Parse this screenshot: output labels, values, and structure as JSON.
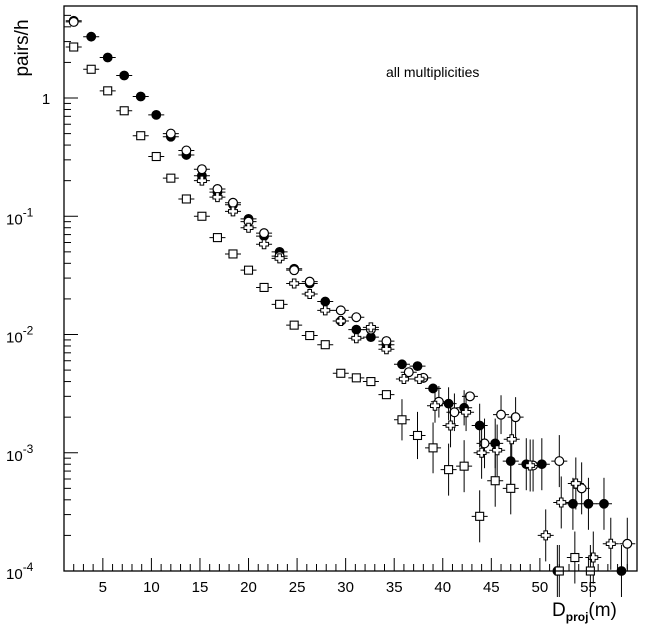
{
  "chart_data": {
    "type": "scatter",
    "ylabel": "pairs/h",
    "xlabel_main": "D",
    "xlabel_sub": "proj",
    "xlabel_unit": "(m)",
    "annotation": "all multiplicities",
    "xlim": [
      1,
      60
    ],
    "ylim": [
      0.0001,
      6
    ],
    "yscale": "log",
    "grid": false,
    "legend": "none",
    "x_tick_labels": [
      "5",
      "10",
      "15",
      "20",
      "25",
      "30",
      "35",
      "40",
      "45",
      "50",
      "55"
    ],
    "y_tick_labels": [
      {
        "value": 1,
        "label": "1"
      },
      {
        "value": 0.1,
        "label": "10",
        "exp": "-1"
      },
      {
        "value": 0.01,
        "label": "10",
        "exp": "-2"
      },
      {
        "value": 0.001,
        "label": "10",
        "exp": "-3"
      },
      {
        "value": 0.0001,
        "label": "10",
        "exp": "-4"
      }
    ],
    "series": [
      {
        "marker": "circle-filled",
        "points": [
          [
            2.0,
            4.5
          ],
          [
            3.8,
            3.3
          ],
          [
            5.5,
            2.2
          ],
          [
            7.2,
            1.55
          ],
          [
            8.9,
            1.03
          ],
          [
            10.5,
            0.72
          ],
          [
            12.0,
            0.47
          ],
          [
            13.6,
            0.33
          ],
          [
            15.2,
            0.22
          ],
          [
            16.8,
            0.16
          ],
          [
            18.4,
            0.125
          ],
          [
            20.0,
            0.095
          ],
          [
            21.6,
            0.068
          ],
          [
            23.2,
            0.05
          ],
          [
            24.7,
            0.036
          ],
          [
            26.3,
            0.027
          ],
          [
            27.9,
            0.019
          ],
          [
            29.5,
            0.013
          ],
          [
            31.1,
            0.011
          ],
          [
            32.6,
            0.0095
          ],
          [
            34.2,
            0.0082
          ],
          [
            35.8,
            0.0056
          ],
          [
            37.4,
            0.0054
          ],
          [
            39.0,
            0.0035
          ],
          [
            40.6,
            0.0026
          ],
          [
            42.2,
            0.0024
          ],
          [
            43.8,
            0.0017
          ],
          [
            45.4,
            0.0012
          ],
          [
            47.0,
            0.00085
          ],
          [
            48.6,
            0.0008
          ],
          [
            50.2,
            0.0008
          ],
          [
            51.8,
            0.0001
          ],
          [
            53.4,
            0.00037
          ],
          [
            55.0,
            0.00037
          ],
          [
            56.6,
            0.00037
          ],
          [
            58.4,
            0.0001
          ]
        ]
      },
      {
        "marker": "circle-open",
        "points": [
          [
            2.0,
            4.4
          ],
          [
            12.0,
            0.5
          ],
          [
            13.6,
            0.36
          ],
          [
            15.2,
            0.25
          ],
          [
            16.8,
            0.17
          ],
          [
            18.4,
            0.13
          ],
          [
            20.0,
            0.09
          ],
          [
            21.6,
            0.072
          ],
          [
            23.2,
            0.046
          ],
          [
            24.7,
            0.035
          ],
          [
            26.3,
            0.028
          ],
          [
            29.5,
            0.016
          ],
          [
            31.1,
            0.014
          ],
          [
            32.6,
            0.011
          ],
          [
            34.2,
            0.0088
          ],
          [
            36.5,
            0.0048
          ],
          [
            38.0,
            0.0043
          ],
          [
            39.6,
            0.0027
          ],
          [
            41.2,
            0.0022
          ],
          [
            42.8,
            0.003
          ],
          [
            44.3,
            0.0012
          ],
          [
            46.0,
            0.0021
          ],
          [
            47.5,
            0.002
          ],
          [
            49.3,
            0.00078
          ],
          [
            52.0,
            0.00085
          ],
          [
            54.3,
            0.0005
          ],
          [
            59.0,
            0.00017
          ]
        ]
      },
      {
        "marker": "cross-open",
        "points": [
          [
            15.2,
            0.2
          ],
          [
            16.8,
            0.145
          ],
          [
            18.4,
            0.11
          ],
          [
            20.0,
            0.08
          ],
          [
            21.6,
            0.058
          ],
          [
            23.2,
            0.044
          ],
          [
            24.7,
            0.027
          ],
          [
            26.3,
            0.022
          ],
          [
            27.9,
            0.016
          ],
          [
            29.5,
            0.013
          ],
          [
            31.1,
            0.0093
          ],
          [
            32.6,
            0.0115
          ],
          [
            34.2,
            0.0075
          ],
          [
            36.0,
            0.0042
          ],
          [
            37.6,
            0.0042
          ],
          [
            39.2,
            0.0025
          ],
          [
            40.8,
            0.0017
          ],
          [
            42.4,
            0.0022
          ],
          [
            44.0,
            0.001
          ],
          [
            45.6,
            0.00105
          ],
          [
            47.1,
            0.0013
          ],
          [
            49.0,
            0.00078
          ],
          [
            50.6,
            0.0002
          ],
          [
            52.2,
            0.00038
          ],
          [
            53.7,
            0.00055
          ],
          [
            55.5,
            0.00013
          ],
          [
            57.3,
            0.00017
          ]
        ]
      },
      {
        "marker": "square-open",
        "points": [
          [
            2.0,
            2.7
          ],
          [
            3.8,
            1.75
          ],
          [
            5.5,
            1.15
          ],
          [
            7.2,
            0.78
          ],
          [
            8.9,
            0.48
          ],
          [
            10.5,
            0.32
          ],
          [
            12.0,
            0.21
          ],
          [
            13.6,
            0.14
          ],
          [
            15.2,
            0.1
          ],
          [
            16.8,
            0.066
          ],
          [
            18.4,
            0.048
          ],
          [
            20.0,
            0.035
          ],
          [
            21.6,
            0.025
          ],
          [
            23.2,
            0.018
          ],
          [
            24.7,
            0.012
          ],
          [
            26.3,
            0.0098
          ],
          [
            27.9,
            0.0082
          ],
          [
            29.5,
            0.0047
          ],
          [
            31.1,
            0.0043
          ],
          [
            32.6,
            0.004
          ],
          [
            34.2,
            0.0031
          ],
          [
            35.8,
            0.0019
          ],
          [
            37.4,
            0.0014
          ],
          [
            39.0,
            0.0011
          ],
          [
            40.6,
            0.00072
          ],
          [
            42.2,
            0.00077
          ],
          [
            43.8,
            0.00029
          ],
          [
            45.4,
            0.00058
          ],
          [
            47.0,
            0.0005
          ],
          [
            52.0,
            0.0001
          ],
          [
            53.6,
            0.00013
          ],
          [
            55.2,
            0.0001
          ]
        ]
      }
    ]
  }
}
